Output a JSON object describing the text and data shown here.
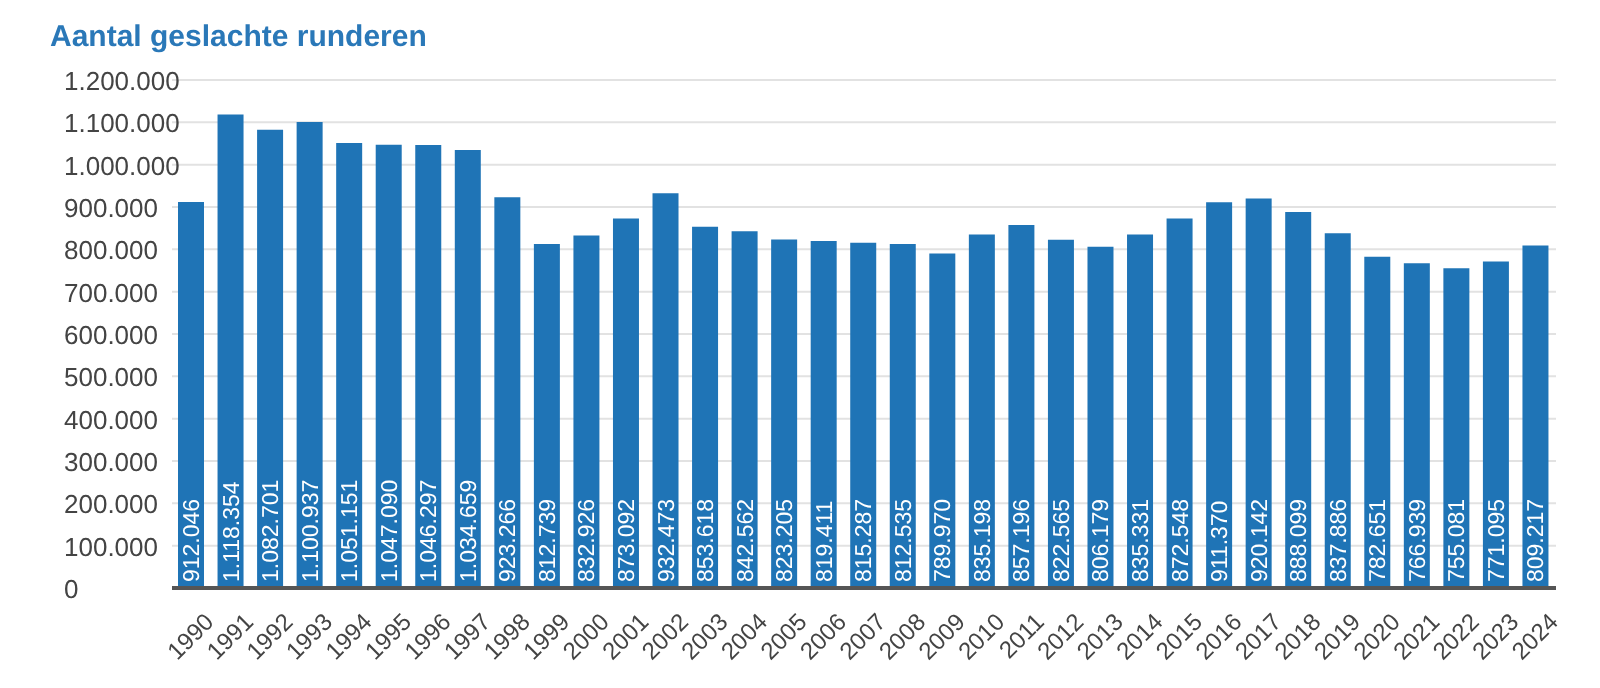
{
  "chart_data": {
    "type": "bar",
    "title": "Aantal geslachte runderen",
    "categories": [
      "1990",
      "1991",
      "1992",
      "1993",
      "1994",
      "1995",
      "1996",
      "1997",
      "1998",
      "1999",
      "2000",
      "2001",
      "2002",
      "2003",
      "2004",
      "2005",
      "2006",
      "2007",
      "2008",
      "2009",
      "2010",
      "2011",
      "2012",
      "2013",
      "2014",
      "2015",
      "2016",
      "2017",
      "2018",
      "2019",
      "2020",
      "2021",
      "2022",
      "2023",
      "2024"
    ],
    "values": [
      912046,
      1118354,
      1082701,
      1100937,
      1051151,
      1047090,
      1046297,
      1034659,
      923266,
      812739,
      832926,
      873092,
      932473,
      853618,
      842562,
      823205,
      819411,
      815287,
      812535,
      789970,
      835198,
      857196,
      822565,
      806179,
      835331,
      872548,
      911370,
      920142,
      888099,
      837886,
      782651,
      766939,
      755081,
      771095,
      809217
    ],
    "value_labels": [
      "912.046",
      "1.118.354",
      "1.082.701",
      "1.100.937",
      "1.051.151",
      "1.047.090",
      "1.046.297",
      "1.034.659",
      "923.266",
      "812.739",
      "832.926",
      "873.092",
      "932.473",
      "853.618",
      "842.562",
      "823.205",
      "819.411",
      "815.287",
      "812.535",
      "789.970",
      "835.198",
      "857.196",
      "822.565",
      "806.179",
      "835.331",
      "872.548",
      "911.370",
      "920.142",
      "888.099",
      "837.886",
      "782.651",
      "766.939",
      "755.081",
      "771.095",
      "809.217"
    ],
    "color": "#1f74b6",
    "ylim": [
      0,
      1200000
    ],
    "yticks": [
      0,
      {
        "value": 100000,
        "label": "100.000"
      },
      {
        "value": 200000,
        "label": "200.000"
      },
      {
        "value": 300000,
        "label": "300.000"
      },
      {
        "value": 400000,
        "label": "400.000"
      },
      {
        "value": 500000,
        "label": "500.000"
      },
      {
        "value": 600000,
        "label": "600.000"
      },
      {
        "value": 700000,
        "label": "700.000"
      },
      {
        "value": 800000,
        "label": "800.000"
      },
      {
        "value": 900000,
        "label": "900.000"
      },
      {
        "value": 1000000,
        "label": "1.000.000"
      },
      {
        "value": 1100000,
        "label": "1.100.000"
      },
      {
        "value": 1200000,
        "label": "1.200.000"
      }
    ],
    "grid": "y",
    "legend": false
  }
}
